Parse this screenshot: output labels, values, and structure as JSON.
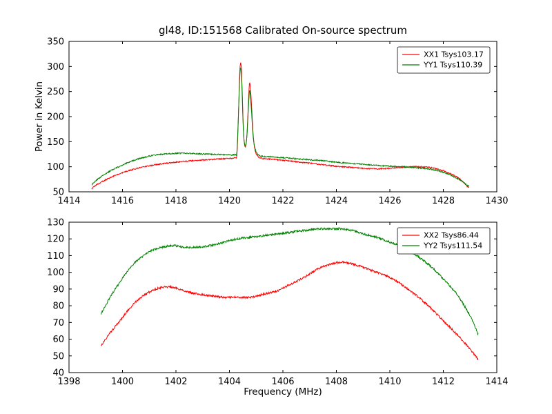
{
  "figure": {
    "background": "#ffffff",
    "frame_color": "#000000"
  },
  "chart_data": [
    {
      "type": "line",
      "title": "gl48, ID:151568 Calibrated On-source spectrum",
      "xlabel": "",
      "ylabel": "Power in Kelvin",
      "xlim": [
        1414,
        1430
      ],
      "ylim": [
        50,
        350
      ],
      "xticks": [
        1414,
        1416,
        1418,
        1420,
        1422,
        1424,
        1426,
        1428,
        1430
      ],
      "yticks": [
        50,
        100,
        150,
        200,
        250,
        300,
        350
      ],
      "grid": false,
      "legend_position": "upper right",
      "series": [
        {
          "name": "XX1 Tsys103.17",
          "color": "#ff0000",
          "points": [
            [
              1414.85,
              57
            ],
            [
              1415.0,
              63
            ],
            [
              1415.3,
              72
            ],
            [
              1415.7,
              82
            ],
            [
              1416.1,
              90
            ],
            [
              1416.5,
              96
            ],
            [
              1417.0,
              102
            ],
            [
              1417.5,
              106
            ],
            [
              1418.0,
              109
            ],
            [
              1418.6,
              112
            ],
            [
              1419.2,
              114
            ],
            [
              1419.8,
              116
            ],
            [
              1420.2,
              118
            ],
            [
              1420.28,
              125
            ],
            [
              1420.33,
              190
            ],
            [
              1420.38,
              280
            ],
            [
              1420.42,
              307
            ],
            [
              1420.46,
              280
            ],
            [
              1420.52,
              180
            ],
            [
              1420.58,
              140
            ],
            [
              1420.65,
              160
            ],
            [
              1420.72,
              240
            ],
            [
              1420.76,
              268
            ],
            [
              1420.82,
              230
            ],
            [
              1420.88,
              170
            ],
            [
              1420.95,
              135
            ],
            [
              1421.05,
              122
            ],
            [
              1421.2,
              117
            ],
            [
              1421.6,
              115
            ],
            [
              1422.0,
              113
            ],
            [
              1422.5,
              110
            ],
            [
              1423.0,
              107
            ],
            [
              1423.5,
              104
            ],
            [
              1424.0,
              101
            ],
            [
              1424.5,
              99
            ],
            [
              1425.0,
              97
            ],
            [
              1425.5,
              96
            ],
            [
              1426.0,
              97
            ],
            [
              1426.5,
              99
            ],
            [
              1427.0,
              100
            ],
            [
              1427.4,
              99
            ],
            [
              1427.8,
              95
            ],
            [
              1428.2,
              88
            ],
            [
              1428.6,
              76
            ],
            [
              1428.95,
              58
            ]
          ]
        },
        {
          "name": "YY1 Tsys110.39",
          "color": "#008000",
          "points": [
            [
              1414.85,
              64
            ],
            [
              1415.0,
              72
            ],
            [
              1415.3,
              84
            ],
            [
              1415.7,
              96
            ],
            [
              1416.1,
              106
            ],
            [
              1416.5,
              114
            ],
            [
              1416.9,
              120
            ],
            [
              1417.3,
              124
            ],
            [
              1417.8,
              126
            ],
            [
              1418.3,
              127
            ],
            [
              1418.8,
              126
            ],
            [
              1419.3,
              125
            ],
            [
              1419.8,
              124
            ],
            [
              1420.2,
              124
            ],
            [
              1420.28,
              130
            ],
            [
              1420.33,
              195
            ],
            [
              1420.38,
              270
            ],
            [
              1420.42,
              297
            ],
            [
              1420.46,
              268
            ],
            [
              1420.52,
              175
            ],
            [
              1420.58,
              142
            ],
            [
              1420.65,
              158
            ],
            [
              1420.72,
              228
            ],
            [
              1420.76,
              252
            ],
            [
              1420.82,
              215
            ],
            [
              1420.88,
              165
            ],
            [
              1420.95,
              138
            ],
            [
              1421.05,
              126
            ],
            [
              1421.2,
              121
            ],
            [
              1421.6,
              120
            ],
            [
              1422.0,
              118
            ],
            [
              1422.5,
              116
            ],
            [
              1423.0,
              114
            ],
            [
              1423.5,
              112
            ],
            [
              1424.0,
              109
            ],
            [
              1424.5,
              107
            ],
            [
              1425.0,
              105
            ],
            [
              1425.5,
              103
            ],
            [
              1426.0,
              101
            ],
            [
              1426.5,
              100
            ],
            [
              1427.0,
              98
            ],
            [
              1427.4,
              96
            ],
            [
              1427.8,
              92
            ],
            [
              1428.2,
              85
            ],
            [
              1428.6,
              74
            ],
            [
              1428.95,
              61
            ]
          ]
        }
      ]
    },
    {
      "type": "line",
      "title": "",
      "xlabel": "Frequency (MHz)",
      "ylabel": "",
      "xlim": [
        1398,
        1414
      ],
      "ylim": [
        40,
        130
      ],
      "xticks": [
        1398,
        1400,
        1402,
        1404,
        1406,
        1408,
        1410,
        1412,
        1414
      ],
      "yticks": [
        40,
        50,
        60,
        70,
        80,
        90,
        100,
        110,
        120,
        130
      ],
      "grid": false,
      "legend_position": "upper right",
      "series": [
        {
          "name": "XX2 Tsys86.44",
          "color": "#ff0000",
          "points": [
            [
              1399.2,
              56
            ],
            [
              1399.5,
              63
            ],
            [
              1399.9,
              71
            ],
            [
              1400.3,
              79
            ],
            [
              1400.7,
              85
            ],
            [
              1401.1,
              89
            ],
            [
              1401.5,
              91
            ],
            [
              1401.9,
              91
            ],
            [
              1402.3,
              89
            ],
            [
              1402.8,
              87
            ],
            [
              1403.3,
              86
            ],
            [
              1403.8,
              85
            ],
            [
              1404.3,
              85
            ],
            [
              1404.8,
              85
            ],
            [
              1405.3,
              87
            ],
            [
              1405.8,
              89
            ],
            [
              1406.3,
              93
            ],
            [
              1406.8,
              97
            ],
            [
              1407.3,
              102
            ],
            [
              1407.8,
              105
            ],
            [
              1408.2,
              106
            ],
            [
              1408.6,
              105
            ],
            [
              1409.0,
              103
            ],
            [
              1409.5,
              100
            ],
            [
              1410.0,
              97
            ],
            [
              1410.5,
              92
            ],
            [
              1411.0,
              86
            ],
            [
              1411.5,
              79
            ],
            [
              1412.0,
              71
            ],
            [
              1412.5,
              63
            ],
            [
              1413.0,
              54
            ],
            [
              1413.3,
              48
            ]
          ]
        },
        {
          "name": "YY2 Tsys111.54",
          "color": "#008000",
          "points": [
            [
              1399.2,
              75
            ],
            [
              1399.5,
              84
            ],
            [
              1399.9,
              94
            ],
            [
              1400.3,
              103
            ],
            [
              1400.7,
              109
            ],
            [
              1401.1,
              113
            ],
            [
              1401.5,
              115
            ],
            [
              1401.9,
              116
            ],
            [
              1402.3,
              115
            ],
            [
              1402.8,
              115
            ],
            [
              1403.3,
              116
            ],
            [
              1403.8,
              118
            ],
            [
              1404.3,
              120
            ],
            [
              1404.8,
              121
            ],
            [
              1405.3,
              122
            ],
            [
              1405.8,
              123
            ],
            [
              1406.3,
              124
            ],
            [
              1406.8,
              125
            ],
            [
              1407.3,
              126
            ],
            [
              1407.8,
              126
            ],
            [
              1408.2,
              126
            ],
            [
              1408.6,
              125
            ],
            [
              1409.0,
              123
            ],
            [
              1409.5,
              121
            ],
            [
              1410.0,
              118
            ],
            [
              1410.5,
              115
            ],
            [
              1411.0,
              110
            ],
            [
              1411.5,
              104
            ],
            [
              1412.0,
              96
            ],
            [
              1412.5,
              87
            ],
            [
              1413.0,
              74
            ],
            [
              1413.3,
              63
            ]
          ]
        }
      ]
    }
  ]
}
